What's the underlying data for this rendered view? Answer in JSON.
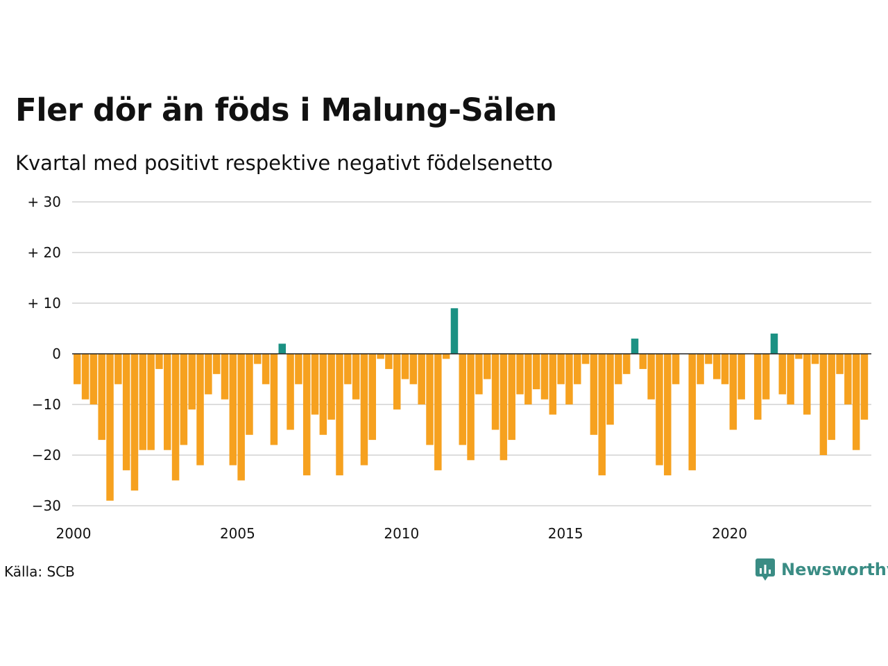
{
  "title": "Fler dör än föds i Malung-Sälen",
  "subtitle": "Kvartal med positivt respektive negativt födelsenetto",
  "source": "Källa: SCB",
  "logo": {
    "text": "Newsworthy",
    "icon": "newsworthy-chart-icon"
  },
  "colors": {
    "positive": "#1b9183",
    "negative": "#f6a11f",
    "grid": "#dddddd",
    "zero": "#222222"
  },
  "chart_data": {
    "type": "bar",
    "title": "Fler dör än föds i Malung-Sälen",
    "subtitle": "Kvartal med positivt respektive negativt födelsenetto",
    "ylim": [
      -30,
      30
    ],
    "y_ticks": [
      {
        "value": 30,
        "label": "+ 30"
      },
      {
        "value": 20,
        "label": "+ 20"
      },
      {
        "value": 10,
        "label": "+ 10"
      },
      {
        "value": 0,
        "label": "0"
      },
      {
        "value": -10,
        "label": "−10"
      },
      {
        "value": -20,
        "label": "−20"
      },
      {
        "value": -30,
        "label": "−30"
      }
    ],
    "x_ticks": [
      {
        "value": 2000,
        "label": "2000"
      },
      {
        "value": 2005,
        "label": "2005"
      },
      {
        "value": 2010,
        "label": "2010"
      },
      {
        "value": 2015,
        "label": "2015"
      },
      {
        "value": 2020,
        "label": "2020"
      }
    ],
    "start_year": 2000,
    "values": [
      -6,
      -9,
      -10,
      -17,
      -29,
      -6,
      -23,
      -27,
      -19,
      -19,
      -3,
      -19,
      -25,
      -18,
      -11,
      -22,
      -8,
      -4,
      -9,
      -22,
      -25,
      -16,
      -2,
      -6,
      -18,
      2,
      -15,
      -6,
      -24,
      -12,
      -16,
      -13,
      -24,
      -6,
      -9,
      -22,
      -17,
      -1,
      -3,
      -11,
      -5,
      -6,
      -10,
      -18,
      -23,
      -1,
      9,
      -18,
      -21,
      -8,
      -5,
      -15,
      -21,
      -17,
      -8,
      -10,
      -7,
      -9,
      -12,
      -6,
      -10,
      -6,
      -2,
      -16,
      -24,
      -14,
      -6,
      -4,
      3,
      -3,
      -9,
      -22,
      -24,
      -6,
      0,
      -23,
      -6,
      -2,
      -5,
      -6,
      -15,
      -9,
      0,
      -13,
      -9,
      4,
      -8,
      -10,
      -1,
      -12,
      -2,
      -20,
      -17,
      -4,
      -10,
      -19,
      -13
    ]
  }
}
